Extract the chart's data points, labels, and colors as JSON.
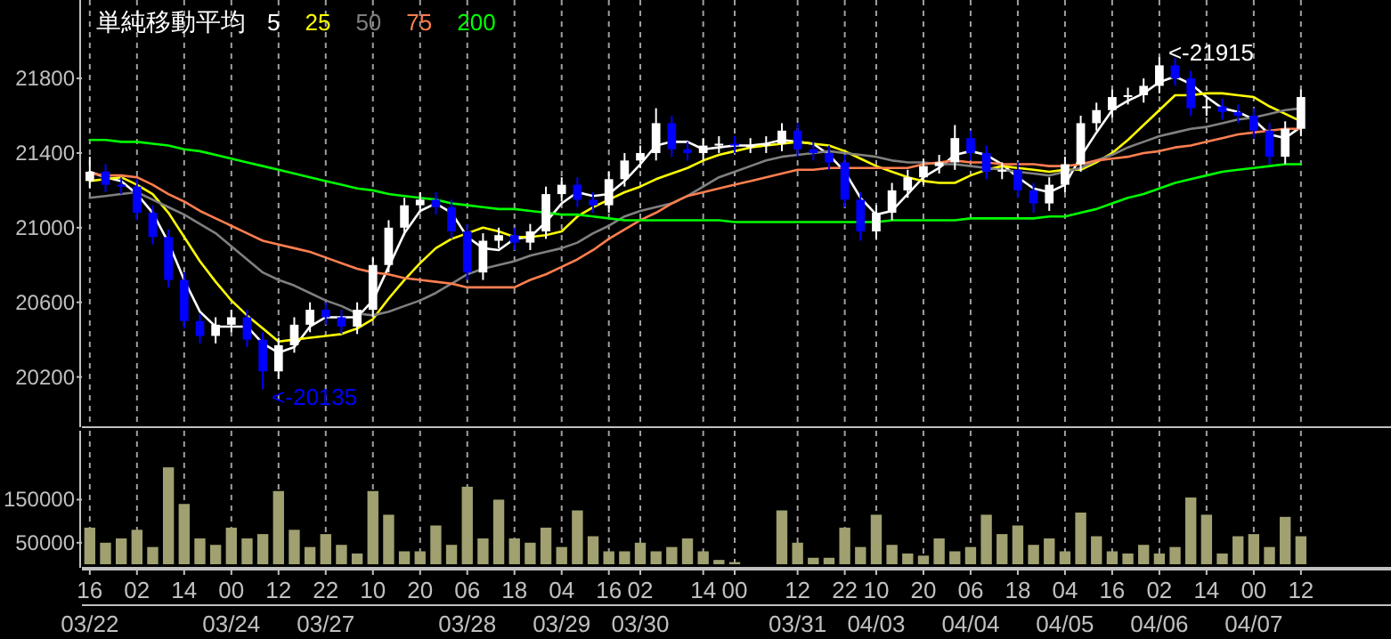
{
  "chart_data": [
    {
      "type": "candlestick",
      "legend_title": "単純移動平均",
      "legend": "top left",
      "grid": "x",
      "tick_labels": "y",
      "ylim": [
        19950,
        22220
      ],
      "yticks": [
        20200,
        20600,
        21000,
        21400,
        21800
      ],
      "categories": [
        null,
        null,
        null,
        null,
        null,
        null,
        null,
        null,
        null,
        null,
        null,
        null,
        null,
        null,
        null,
        null,
        null,
        null,
        null,
        null,
        null,
        null,
        null,
        null,
        null,
        null,
        null,
        null,
        null,
        null,
        null,
        null,
        null,
        null,
        null,
        null,
        null,
        null,
        null,
        null,
        null,
        null,
        null,
        null,
        null,
        null,
        null,
        null,
        null,
        null,
        null,
        null,
        null,
        null,
        null,
        null,
        null,
        null,
        null,
        null,
        null,
        null,
        null,
        null,
        null,
        null,
        null,
        null,
        null,
        null,
        null,
        null,
        null,
        null,
        null,
        null,
        null,
        null,
        null,
        null,
        null,
        null,
        null
      ],
      "ohlc": [
        [
          21250,
          21380,
          21210,
          21300
        ],
        [
          21300,
          21340,
          21190,
          21230
        ],
        [
          21230,
          21270,
          21180,
          21220
        ],
        [
          21220,
          21260,
          21040,
          21080
        ],
        [
          21080,
          21120,
          20910,
          20950
        ],
        [
          20950,
          20990,
          20680,
          20720
        ],
        [
          20720,
          20760,
          20460,
          20500
        ],
        [
          20500,
          20540,
          20380,
          20420
        ],
        [
          20420,
          20520,
          20380,
          20480
        ],
        [
          20480,
          20560,
          20440,
          20520
        ],
        [
          20520,
          20560,
          20360,
          20400
        ],
        [
          20400,
          20440,
          20135,
          20230
        ],
        [
          20230,
          20410,
          20190,
          20370
        ],
        [
          20370,
          20520,
          20330,
          20480
        ],
        [
          20480,
          20600,
          20440,
          20560
        ],
        [
          20560,
          20600,
          20480,
          20520
        ],
        [
          20520,
          20560,
          20430,
          20470
        ],
        [
          20470,
          20600,
          20430,
          20560
        ],
        [
          20560,
          20840,
          20520,
          20800
        ],
        [
          20800,
          21040,
          20760,
          21000
        ],
        [
          21000,
          21160,
          20960,
          21120
        ],
        [
          21120,
          21190,
          21080,
          21150
        ],
        [
          21150,
          21190,
          21070,
          21110
        ],
        [
          21110,
          21150,
          20940,
          20980
        ],
        [
          20980,
          21020,
          20720,
          20760
        ],
        [
          20760,
          20970,
          20720,
          20930
        ],
        [
          20930,
          21000,
          20890,
          20960
        ],
        [
          20960,
          21000,
          20880,
          20920
        ],
        [
          20920,
          21020,
          20880,
          20980
        ],
        [
          20980,
          21220,
          20940,
          21180
        ],
        [
          21180,
          21270,
          21140,
          21230
        ],
        [
          21230,
          21270,
          21110,
          21150
        ],
        [
          21150,
          21190,
          21080,
          21120
        ],
        [
          21120,
          21300,
          21080,
          21260
        ],
        [
          21260,
          21400,
          21220,
          21360
        ],
        [
          21360,
          21440,
          21320,
          21400
        ],
        [
          21400,
          21640,
          21360,
          21560
        ],
        [
          21560,
          21600,
          21380,
          21420
        ],
        [
          21420,
          21460,
          21360,
          21400
        ],
        [
          21400,
          21480,
          21360,
          21440
        ],
        [
          21440,
          21490,
          21400,
          21450
        ],
        [
          21450,
          21490,
          21400,
          21440
        ],
        [
          21440,
          21480,
          21400,
          21440
        ],
        [
          21440,
          21490,
          21400,
          21450
        ],
        [
          21450,
          21560,
          21410,
          21520
        ],
        [
          21520,
          21560,
          21380,
          21420
        ],
        [
          21420,
          21460,
          21360,
          21400
        ],
        [
          21400,
          21440,
          21310,
          21350
        ],
        [
          21350,
          21390,
          21110,
          21150
        ],
        [
          21150,
          21190,
          20930,
          20980
        ],
        [
          20980,
          21120,
          20940,
          21080
        ],
        [
          21080,
          21240,
          21040,
          21200
        ],
        [
          21200,
          21310,
          21160,
          21270
        ],
        [
          21270,
          21370,
          21230,
          21330
        ],
        [
          21330,
          21390,
          21290,
          21350
        ],
        [
          21350,
          21550,
          21310,
          21480
        ],
        [
          21480,
          21520,
          21360,
          21400
        ],
        [
          21400,
          21440,
          21260,
          21300
        ],
        [
          21300,
          21350,
          21260,
          21310
        ],
        [
          21310,
          21350,
          21160,
          21200
        ],
        [
          21200,
          21240,
          21080,
          21130
        ],
        [
          21130,
          21270,
          21090,
          21230
        ],
        [
          21230,
          21380,
          21190,
          21340
        ],
        [
          21340,
          21600,
          21300,
          21560
        ],
        [
          21560,
          21670,
          21520,
          21630
        ],
        [
          21630,
          21740,
          21590,
          21700
        ],
        [
          21700,
          21750,
          21660,
          21710
        ],
        [
          21710,
          21800,
          21670,
          21760
        ],
        [
          21760,
          21915,
          21720,
          21870
        ],
        [
          21870,
          21910,
          21760,
          21800
        ],
        [
          21800,
          21840,
          21600,
          21640
        ],
        [
          21640,
          21690,
          21600,
          21650
        ],
        [
          21650,
          21690,
          21580,
          21620
        ],
        [
          21620,
          21660,
          21560,
          21600
        ],
        [
          21600,
          21640,
          21480,
          21520
        ],
        [
          21520,
          21560,
          21340,
          21380
        ],
        [
          21380,
          21570,
          21340,
          21530
        ],
        [
          21530,
          21740,
          21490,
          21700
        ],
        null,
        null,
        null,
        null,
        null
      ],
      "colors": [
        "#ffffff",
        "#0000ff",
        "#0000ff",
        "#0000ff",
        "#0000ff",
        "#0000ff",
        "#0000ff",
        "#0000ff",
        "#ffffff",
        "#ffffff",
        "#0000ff",
        "#0000ff",
        "#ffffff",
        "#ffffff",
        "#ffffff",
        "#0000ff",
        "#0000ff",
        "#ffffff",
        "#ffffff",
        "#ffffff",
        "#ffffff",
        "#ffffff",
        "#0000ff",
        "#0000ff",
        "#0000ff",
        "#ffffff",
        "#ffffff",
        "#0000ff",
        "#ffffff",
        "#ffffff",
        "#ffffff",
        "#0000ff",
        "#0000ff",
        "#ffffff",
        "#ffffff",
        "#ffffff",
        "#ffffff",
        "#0000ff",
        "#0000ff",
        "#ffffff",
        "#ffffff",
        "#0000ff",
        "#ffffff",
        "#ffffff",
        "#ffffff",
        "#0000ff",
        "#0000ff",
        "#0000ff",
        "#0000ff",
        "#0000ff",
        "#ffffff",
        "#ffffff",
        "#ffffff",
        "#ffffff",
        "#ffffff",
        "#ffffff",
        "#0000ff",
        "#0000ff",
        "#ffffff",
        "#0000ff",
        "#0000ff",
        "#ffffff",
        "#ffffff",
        "#ffffff",
        "#ffffff",
        "#ffffff",
        "#ffffff",
        "#ffffff",
        "#ffffff",
        "#0000ff",
        "#0000ff",
        "#ffffff",
        "#0000ff",
        "#0000ff",
        "#0000ff",
        "#0000ff",
        "#ffffff",
        "#ffffff",
        null,
        null,
        null,
        null,
        null
      ],
      "series": [
        {
          "type": "line",
          "name": "5",
          "color": "#ffffff",
          "values": [
            21300,
            21270,
            21250,
            21180,
            21080,
            20920,
            20720,
            20550,
            20470,
            20470,
            20470,
            20380,
            20330,
            20360,
            20470,
            20520,
            20520,
            20520,
            20610,
            20790,
            20970,
            21090,
            21130,
            21080,
            20950,
            20890,
            20880,
            20940,
            20950,
            21030,
            21130,
            21190,
            21170,
            21180,
            21250,
            21340,
            21440,
            21460,
            21460,
            21420,
            21430,
            21440,
            21440,
            21450,
            21470,
            21460,
            21450,
            21390,
            21300,
            21160,
            21070,
            21090,
            21180,
            21270,
            21320,
            21390,
            21410,
            21390,
            21340,
            21270,
            21210,
            21190,
            21230,
            21380,
            21510,
            21630,
            21680,
            21720,
            21780,
            21810,
            21770,
            21700,
            21640,
            21620,
            21580,
            21500,
            21480,
            21540,
            null,
            null,
            null,
            null,
            null
          ]
        },
        {
          "type": "line",
          "name": "25",
          "color": "#ffff00",
          "values": [
            21250,
            21260,
            21270,
            21230,
            21180,
            21080,
            20950,
            20820,
            20710,
            20610,
            20530,
            20460,
            20390,
            20400,
            20410,
            20420,
            20430,
            20460,
            20510,
            20620,
            20720,
            20810,
            20890,
            20940,
            20970,
            21000,
            20980,
            20950,
            20950,
            20960,
            20980,
            21060,
            21110,
            21150,
            21190,
            21220,
            21260,
            21290,
            21320,
            21360,
            21390,
            21410,
            21430,
            21440,
            21450,
            21460,
            21450,
            21440,
            21410,
            21370,
            21330,
            21300,
            21270,
            21250,
            21240,
            21240,
            21280,
            21310,
            21330,
            21320,
            21310,
            21300,
            21310,
            21310,
            21350,
            21400,
            21470,
            21550,
            21630,
            21710,
            21710,
            21720,
            21720,
            21710,
            21700,
            21650,
            21610,
            21570,
            null,
            null,
            null,
            null,
            null
          ]
        },
        {
          "type": "line",
          "name": "50",
          "color": "#808080",
          "values": [
            21160,
            21170,
            21180,
            21190,
            21150,
            21110,
            21070,
            21020,
            20970,
            20900,
            20830,
            20760,
            20720,
            20690,
            20650,
            20610,
            20580,
            20540,
            20530,
            20550,
            20580,
            20610,
            20650,
            20700,
            20750,
            20780,
            20800,
            20820,
            20850,
            20870,
            20890,
            20920,
            20970,
            21010,
            21060,
            21090,
            21110,
            21130,
            21170,
            21220,
            21270,
            21300,
            21330,
            21360,
            21380,
            21390,
            21400,
            21410,
            21400,
            21390,
            21380,
            21360,
            21350,
            21350,
            21340,
            21340,
            21330,
            21320,
            21310,
            21300,
            21290,
            21280,
            21300,
            21320,
            21360,
            21390,
            21430,
            21460,
            21490,
            21510,
            21530,
            21540,
            21560,
            21580,
            21590,
            21610,
            21630,
            21640,
            null,
            null,
            null,
            null,
            null
          ]
        },
        {
          "type": "line",
          "name": "75",
          "color": "#ff7f50",
          "values": [
            21290,
            21280,
            21280,
            21270,
            21230,
            21180,
            21140,
            21090,
            21050,
            21010,
            20970,
            20930,
            20910,
            20890,
            20870,
            20840,
            20810,
            20780,
            20760,
            20750,
            20730,
            20720,
            20710,
            20700,
            20680,
            20680,
            20680,
            20680,
            20720,
            20750,
            20790,
            20830,
            20880,
            20940,
            20990,
            21040,
            21080,
            21130,
            21170,
            21190,
            21210,
            21230,
            21250,
            21270,
            21290,
            21310,
            21310,
            21320,
            21320,
            21320,
            21320,
            21320,
            21320,
            21340,
            21350,
            21360,
            21350,
            21350,
            21340,
            21340,
            21340,
            21330,
            21330,
            21340,
            21360,
            21370,
            21380,
            21400,
            21410,
            21430,
            21440,
            21460,
            21480,
            21500,
            21510,
            21520,
            21530,
            21530,
            null,
            null,
            null,
            null,
            null
          ]
        },
        {
          "type": "line",
          "name": "200",
          "color": "#00ff00",
          "values": [
            21470,
            21470,
            21460,
            21460,
            21450,
            21440,
            21420,
            21410,
            21390,
            21370,
            21350,
            21330,
            21310,
            21290,
            21270,
            21250,
            21230,
            21210,
            21200,
            21180,
            21170,
            21160,
            21150,
            21130,
            21120,
            21110,
            21100,
            21100,
            21090,
            21080,
            21070,
            21070,
            21060,
            21050,
            21040,
            21040,
            21040,
            21040,
            21040,
            21040,
            21040,
            21030,
            21030,
            21030,
            21030,
            21030,
            21030,
            21030,
            21030,
            21030,
            21030,
            21040,
            21040,
            21040,
            21040,
            21040,
            21050,
            21050,
            21050,
            21050,
            21050,
            21060,
            21060,
            21080,
            21100,
            21130,
            21160,
            21180,
            21210,
            21240,
            21260,
            21280,
            21300,
            21310,
            21320,
            21330,
            21340,
            21340,
            null,
            null,
            null,
            null,
            null
          ]
        }
      ],
      "annotations": [
        "<-20135",
        "<-21915"
      ]
    },
    {
      "type": "bar",
      "grid": "x",
      "color": "#a0a070",
      "ylim": [
        0,
        310000
      ],
      "yticks": [
        50000,
        150000
      ],
      "categories": [
        "16\n03/22",
        null,
        null,
        "02",
        null,
        null,
        "14",
        null,
        null,
        "00\n03/24",
        null,
        null,
        "12",
        null,
        null,
        "22\n03/27",
        null,
        null,
        "10",
        null,
        null,
        "20",
        null,
        null,
        "06\n03/28",
        null,
        null,
        "18",
        null,
        null,
        "04\n03/29",
        null,
        null,
        "16",
        null,
        "02\n03/30",
        null,
        null,
        null,
        "14",
        null,
        "00",
        null,
        null,
        null,
        "12\n03/31",
        null,
        null,
        "22",
        null,
        "10\n04/03",
        null,
        null,
        "20",
        null,
        null,
        "06\n04/04",
        null,
        null,
        "18",
        null,
        null,
        "04\n04/05",
        null,
        null,
        "16",
        null,
        null,
        "02\n04/06",
        null,
        null,
        "14",
        null,
        null,
        "00\n04/07",
        null,
        null,
        "12",
        null,
        null,
        null,
        null,
        null
      ],
      "values": [
        85000,
        50000,
        60000,
        80000,
        40000,
        225000,
        140000,
        60000,
        45000,
        85000,
        60000,
        70000,
        170000,
        80000,
        40000,
        70000,
        45000,
        25000,
        170000,
        115000,
        30000,
        30000,
        90000,
        45000,
        180000,
        60000,
        150000,
        60000,
        50000,
        85000,
        40000,
        125000,
        65000,
        30000,
        30000,
        50000,
        30000,
        40000,
        60000,
        30000,
        10000,
        5000,
        null,
        null,
        125000,
        50000,
        15000,
        15000,
        85000,
        40000,
        115000,
        45000,
        25000,
        20000,
        60000,
        30000,
        40000,
        115000,
        70000,
        90000,
        45000,
        60000,
        30000,
        120000,
        65000,
        30000,
        25000,
        45000,
        25000,
        40000,
        155000,
        115000,
        25000,
        65000,
        70000,
        40000,
        110000,
        65000,
        null,
        null,
        null,
        null,
        null
      ]
    }
  ]
}
